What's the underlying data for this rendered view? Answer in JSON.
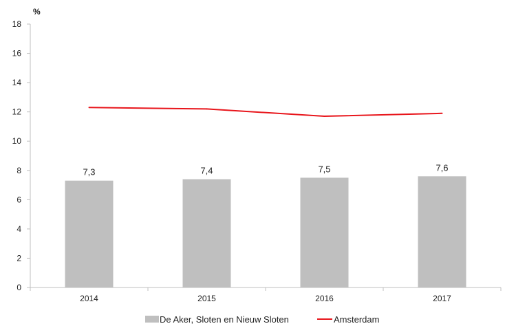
{
  "chart_data": {
    "type": "bar",
    "unit_label": "%",
    "categories": [
      "2014",
      "2015",
      "2016",
      "2017"
    ],
    "series": [
      {
        "name": "De Aker, Sloten en Nieuw Sloten",
        "type": "bar",
        "values": [
          7.3,
          7.4,
          7.5,
          7.6
        ],
        "data_labels": [
          "7,3",
          "7,4",
          "7,5",
          "7,6"
        ],
        "color": "#bfbfbf"
      },
      {
        "name": "Amsterdam",
        "type": "line",
        "values": [
          12.3,
          12.2,
          11.7,
          11.9
        ],
        "color": "#e8151b"
      }
    ],
    "ylim": [
      0,
      18
    ],
    "yticks": [
      "0",
      "2",
      "4",
      "6",
      "8",
      "10",
      "12",
      "14",
      "16",
      "18"
    ],
    "grid": false,
    "legend_position": "bottom"
  }
}
